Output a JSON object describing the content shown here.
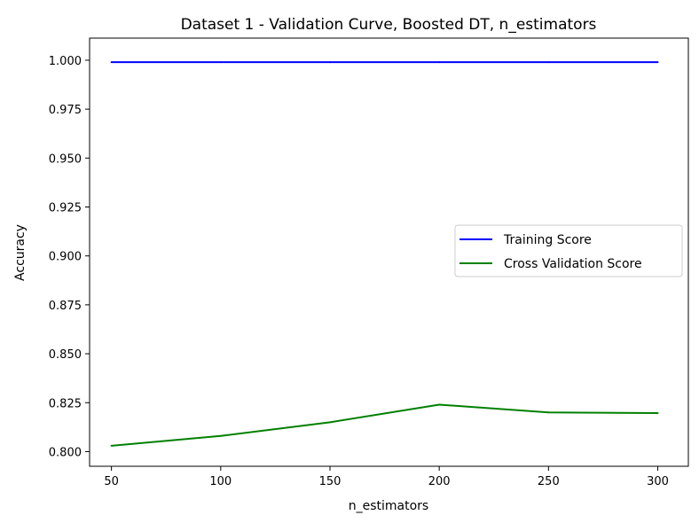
{
  "chart_data": {
    "type": "line",
    "title": "Dataset 1 - Validation Curve, Boosted DT, n_estimators",
    "xlabel": "n_estimators",
    "ylabel": "Accuracy",
    "x": [
      50,
      100,
      150,
      200,
      250,
      300
    ],
    "xticks": [
      50,
      100,
      150,
      200,
      250,
      300
    ],
    "xtick_labels": [
      "50",
      "100",
      "150",
      "200",
      "250",
      "300"
    ],
    "yticks": [
      0.8,
      0.825,
      0.85,
      0.875,
      0.9,
      0.925,
      0.95,
      0.975,
      1.0
    ],
    "ytick_labels": [
      "0.800",
      "0.825",
      "0.850",
      "0.875",
      "0.900",
      "0.925",
      "0.950",
      "0.975",
      "1.000"
    ],
    "xlim": [
      40,
      314
    ],
    "ylim": [
      0.7925,
      1.0113
    ],
    "grid": false,
    "legend_position": "center-right",
    "series": [
      {
        "name": "Training Score",
        "color": "#0000ff",
        "values": [
          0.999,
          0.999,
          0.999,
          0.999,
          0.999,
          0.999
        ]
      },
      {
        "name": "Cross Validation Score",
        "color": "#008000",
        "values": [
          0.803,
          0.808,
          0.815,
          0.824,
          0.82,
          0.8197
        ]
      }
    ]
  }
}
